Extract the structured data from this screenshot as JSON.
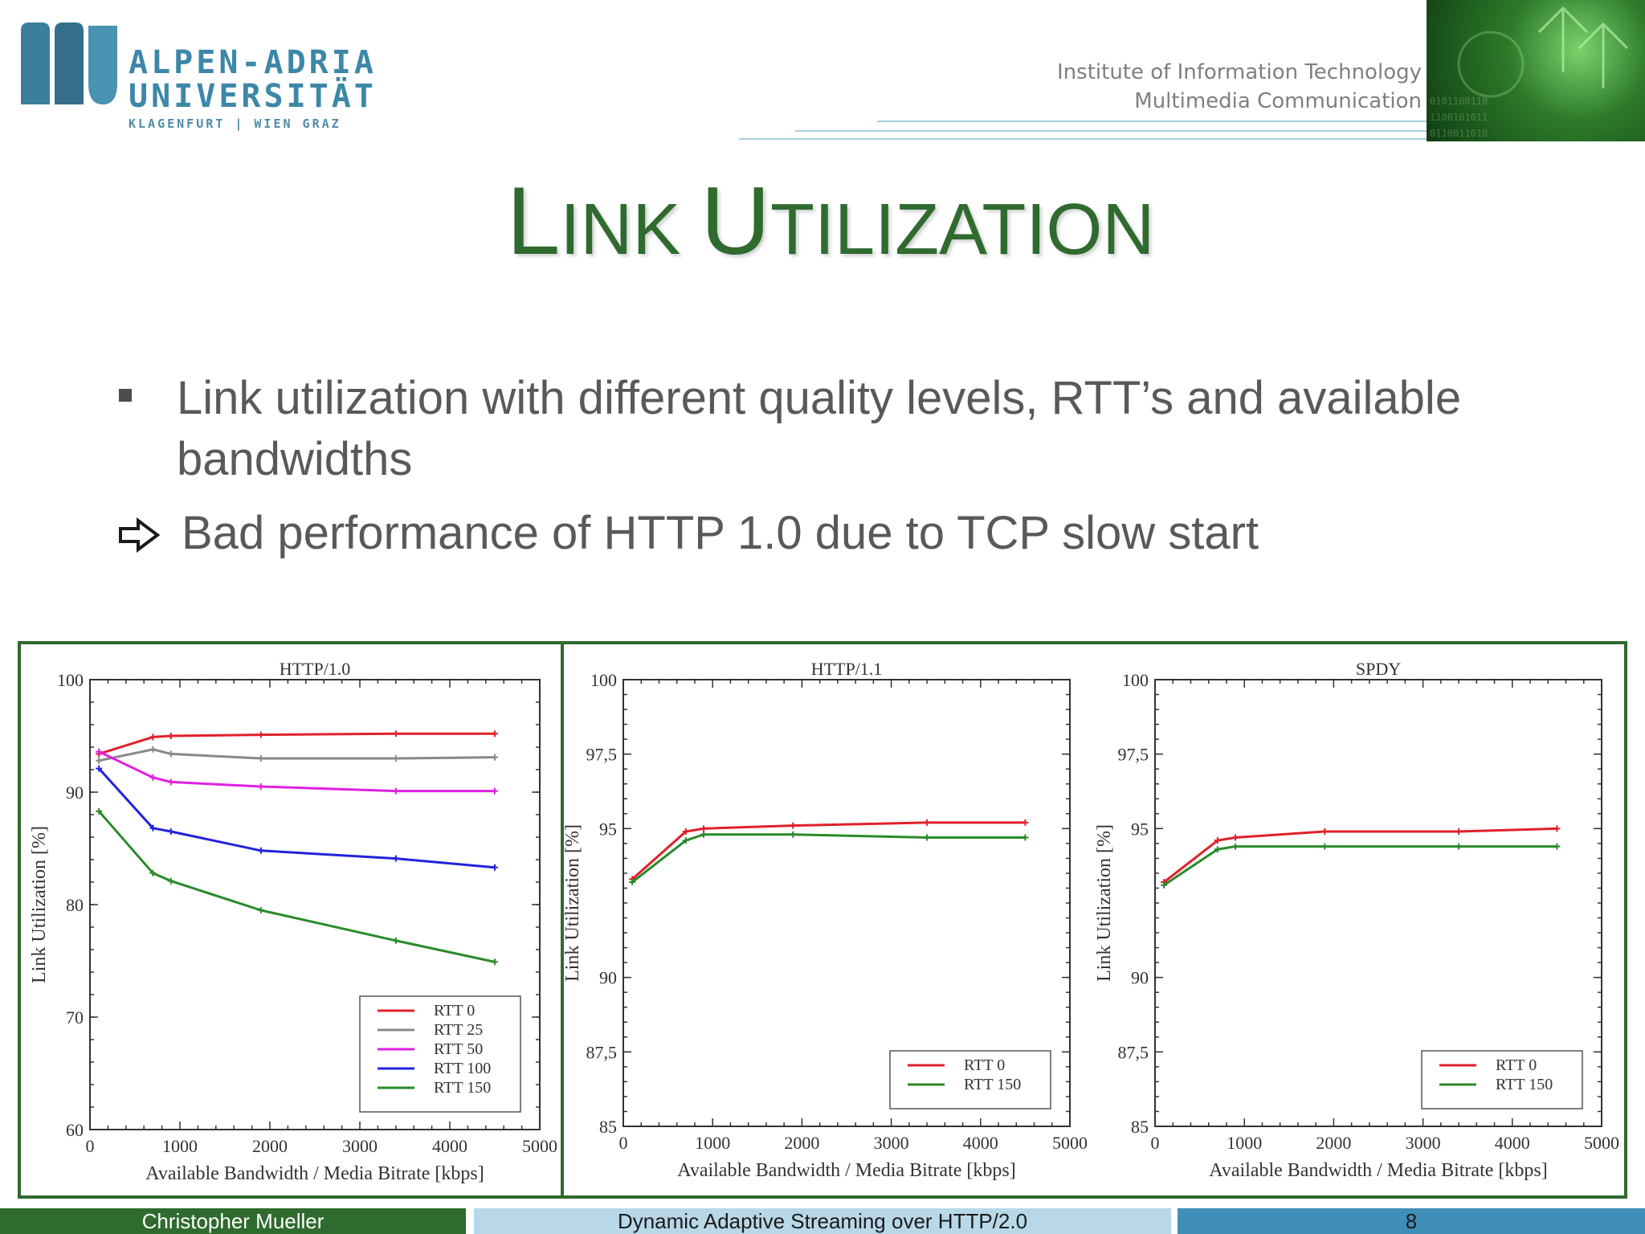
{
  "header": {
    "logo": {
      "line1": "ALPEN-ADRIA",
      "line2": "UNIVERSITÄT",
      "line3": "KLAGENFURT | WIEN GRAZ"
    },
    "institute_line1": "Institute of Information Technology",
    "institute_line2": "Multimedia Communication"
  },
  "slide": {
    "title_first": "L",
    "title_first_rest": "INK ",
    "title_second": "U",
    "title_second_rest": "TILIZATION",
    "bullet1": "Link utilization with different quality levels, RTT’s and available bandwidths",
    "bullet2": "Bad performance of HTTP 1.0 due to TCP slow start"
  },
  "colors": {
    "title": "#2f6a2e",
    "frame": "#2f6a2e",
    "rtt0": "#e0202a",
    "rtt25": "#888888",
    "rtt50": "#e020e0",
    "rtt100": "#2222dd",
    "rtt150": "#2a8a2a"
  },
  "chart_data": [
    {
      "type": "line",
      "title": "HTTP/1.0",
      "xlabel": "Available Bandwidth / Media Bitrate [kbps]",
      "ylabel": "Link Utilization [%]",
      "xlim": [
        0,
        5000
      ],
      "ylim": [
        60,
        100
      ],
      "xticks": [
        0,
        1000,
        2000,
        3000,
        4000,
        5000
      ],
      "xtick_labels": [
        "0",
        "1000",
        "2000",
        "3000",
        "4000",
        "5000"
      ],
      "yticks": [
        60,
        70,
        80,
        90,
        100
      ],
      "ytick_labels": [
        "60",
        "70",
        "80",
        "90",
        "100"
      ],
      "legend_position": "bottom-right",
      "series": [
        {
          "name": "RTT 0",
          "color": "#e0202a",
          "x": [
            100,
            700,
            900,
            1900,
            3400,
            4500
          ],
          "y": [
            93.4,
            94.9,
            95.0,
            95.1,
            95.2,
            95.2
          ]
        },
        {
          "name": "RTT 25",
          "color": "#888888",
          "x": [
            100,
            700,
            900,
            1900,
            3400,
            4500
          ],
          "y": [
            92.8,
            93.8,
            93.4,
            93.0,
            93.0,
            93.1
          ]
        },
        {
          "name": "RTT 50",
          "color": "#e020e0",
          "x": [
            100,
            700,
            900,
            1900,
            3400,
            4500
          ],
          "y": [
            93.6,
            91.3,
            90.9,
            90.5,
            90.1,
            90.1
          ]
        },
        {
          "name": "RTT 100",
          "color": "#2222dd",
          "x": [
            100,
            700,
            900,
            1900,
            3400,
            4500
          ],
          "y": [
            92.1,
            86.8,
            86.5,
            84.8,
            84.1,
            83.3
          ]
        },
        {
          "name": "RTT 150",
          "color": "#2a8a2a",
          "x": [
            100,
            700,
            900,
            1900,
            3400,
            4500
          ],
          "y": [
            88.3,
            82.8,
            82.1,
            79.5,
            76.8,
            74.9
          ]
        }
      ]
    },
    {
      "type": "line",
      "title": "HTTP/1.1",
      "xlabel": "Available Bandwidth / Media Bitrate [kbps]",
      "ylabel": "Link Utilization [%]",
      "xlim": [
        0,
        5000
      ],
      "ylim": [
        85,
        100
      ],
      "xticks": [
        0,
        1000,
        2000,
        3000,
        4000,
        5000
      ],
      "xtick_labels": [
        "0",
        "1000",
        "2000",
        "3000",
        "4000",
        "5000"
      ],
      "yticks": [
        85,
        87.5,
        90,
        95,
        97.5,
        100
      ],
      "ytick_labels": [
        "85",
        "87,5",
        "90",
        "95",
        "97,5",
        "100"
      ],
      "legend_position": "bottom-right",
      "series": [
        {
          "name": "RTT 0",
          "color": "#e0202a",
          "x": [
            100,
            700,
            900,
            1900,
            3400,
            4500
          ],
          "y": [
            93.3,
            94.9,
            95.0,
            95.1,
            95.2,
            95.2
          ]
        },
        {
          "name": "RTT 150",
          "color": "#2a8a2a",
          "x": [
            100,
            700,
            900,
            1900,
            3400,
            4500
          ],
          "y": [
            93.2,
            94.6,
            94.8,
            94.8,
            94.7,
            94.7
          ]
        }
      ]
    },
    {
      "type": "line",
      "title": "SPDY",
      "xlabel": "Available Bandwidth / Media Bitrate [kbps]",
      "ylabel": "Link Utilization [%]",
      "xlim": [
        0,
        5000
      ],
      "ylim": [
        85,
        100
      ],
      "xticks": [
        0,
        1000,
        2000,
        3000,
        4000,
        5000
      ],
      "xtick_labels": [
        "0",
        "1000",
        "2000",
        "3000",
        "4000",
        "5000"
      ],
      "yticks": [
        85,
        87.5,
        90,
        95,
        97.5,
        100
      ],
      "ytick_labels": [
        "85",
        "87,5",
        "90",
        "95",
        "97,5",
        "100"
      ],
      "legend_position": "bottom-right",
      "series": [
        {
          "name": "RTT 0",
          "color": "#e0202a",
          "x": [
            100,
            700,
            900,
            1900,
            3400,
            4500
          ],
          "y": [
            93.2,
            94.6,
            94.7,
            94.9,
            94.9,
            95.0
          ]
        },
        {
          "name": "RTT 150",
          "color": "#2a8a2a",
          "x": [
            100,
            700,
            900,
            1900,
            3400,
            4500
          ],
          "y": [
            93.1,
            94.3,
            94.4,
            94.4,
            94.4,
            94.4
          ]
        }
      ]
    }
  ],
  "footer": {
    "author": "Christopher Mueller",
    "talk": "Dynamic Adaptive Streaming over HTTP/2.0",
    "page": "8"
  }
}
